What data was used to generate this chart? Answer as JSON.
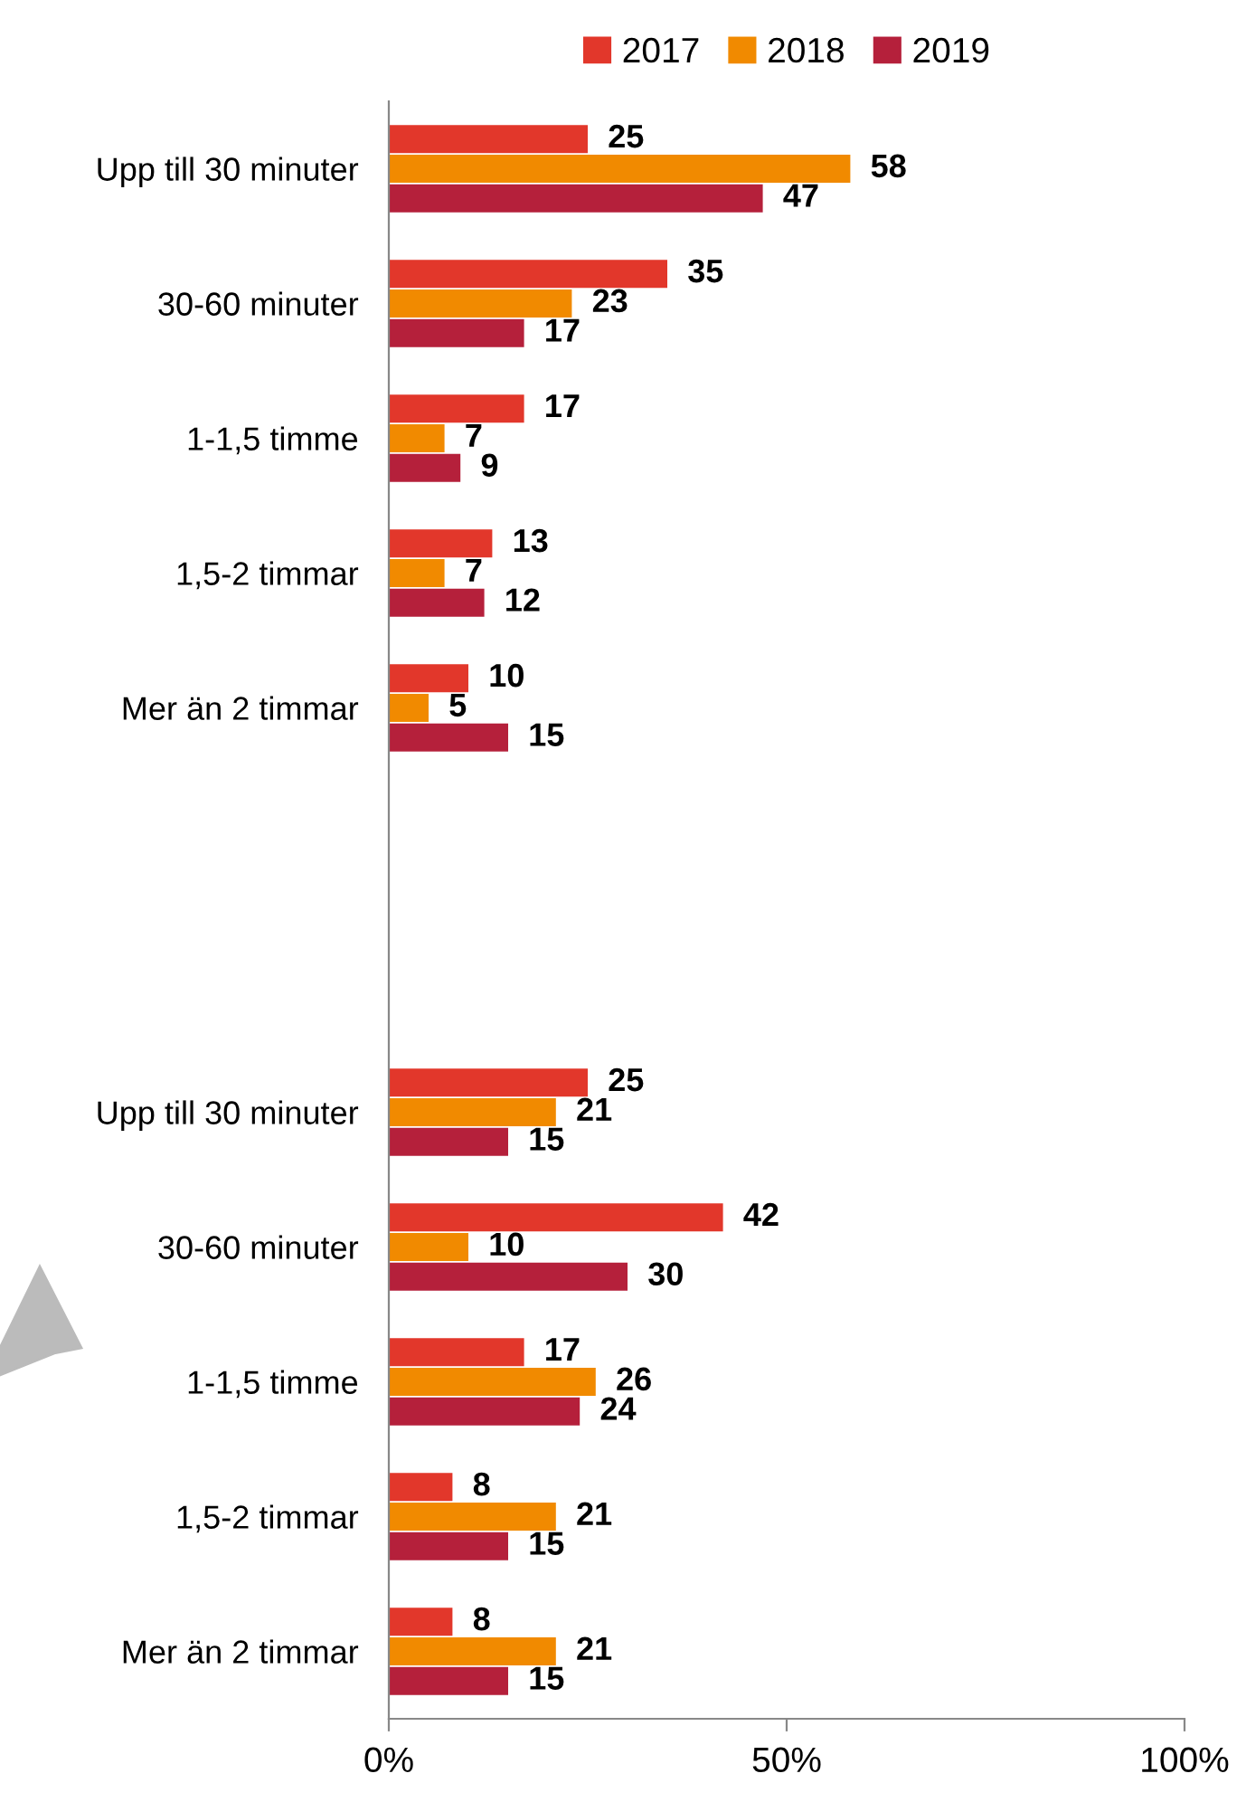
{
  "chart_data": {
    "type": "bar",
    "orientation": "horizontal",
    "categories": [
      "Upp till 30 minuter",
      "30-60 minuter",
      "1-1,5 timme",
      "1,5-2 timmar",
      "Mer än 2 timmar",
      null,
      null,
      "Upp till 30 minuter",
      "30-60 minuter",
      "1-1,5 timme",
      "1,5-2 timmar",
      "Mer än 2 timmar"
    ],
    "series": [
      {
        "name": "2017",
        "color": "#e2372b",
        "values": [
          25,
          35,
          17,
          13,
          10,
          null,
          null,
          25,
          42,
          17,
          8,
          8
        ]
      },
      {
        "name": "2018",
        "color": "#f18a00",
        "values": [
          58,
          23,
          7,
          7,
          5,
          null,
          null,
          21,
          10,
          26,
          21,
          21
        ]
      },
      {
        "name": "2019",
        "color": "#b5203b",
        "values": [
          47,
          17,
          9,
          12,
          15,
          null,
          null,
          15,
          30,
          24,
          15,
          15
        ]
      }
    ],
    "xlim": [
      0,
      100
    ],
    "xticks": [
      {
        "value": 0,
        "label": "0%"
      },
      {
        "value": 50,
        "label": "50%"
      },
      {
        "value": 100,
        "label": "100%"
      }
    ],
    "data_labels": true,
    "legend": "top",
    "grid": false
  }
}
